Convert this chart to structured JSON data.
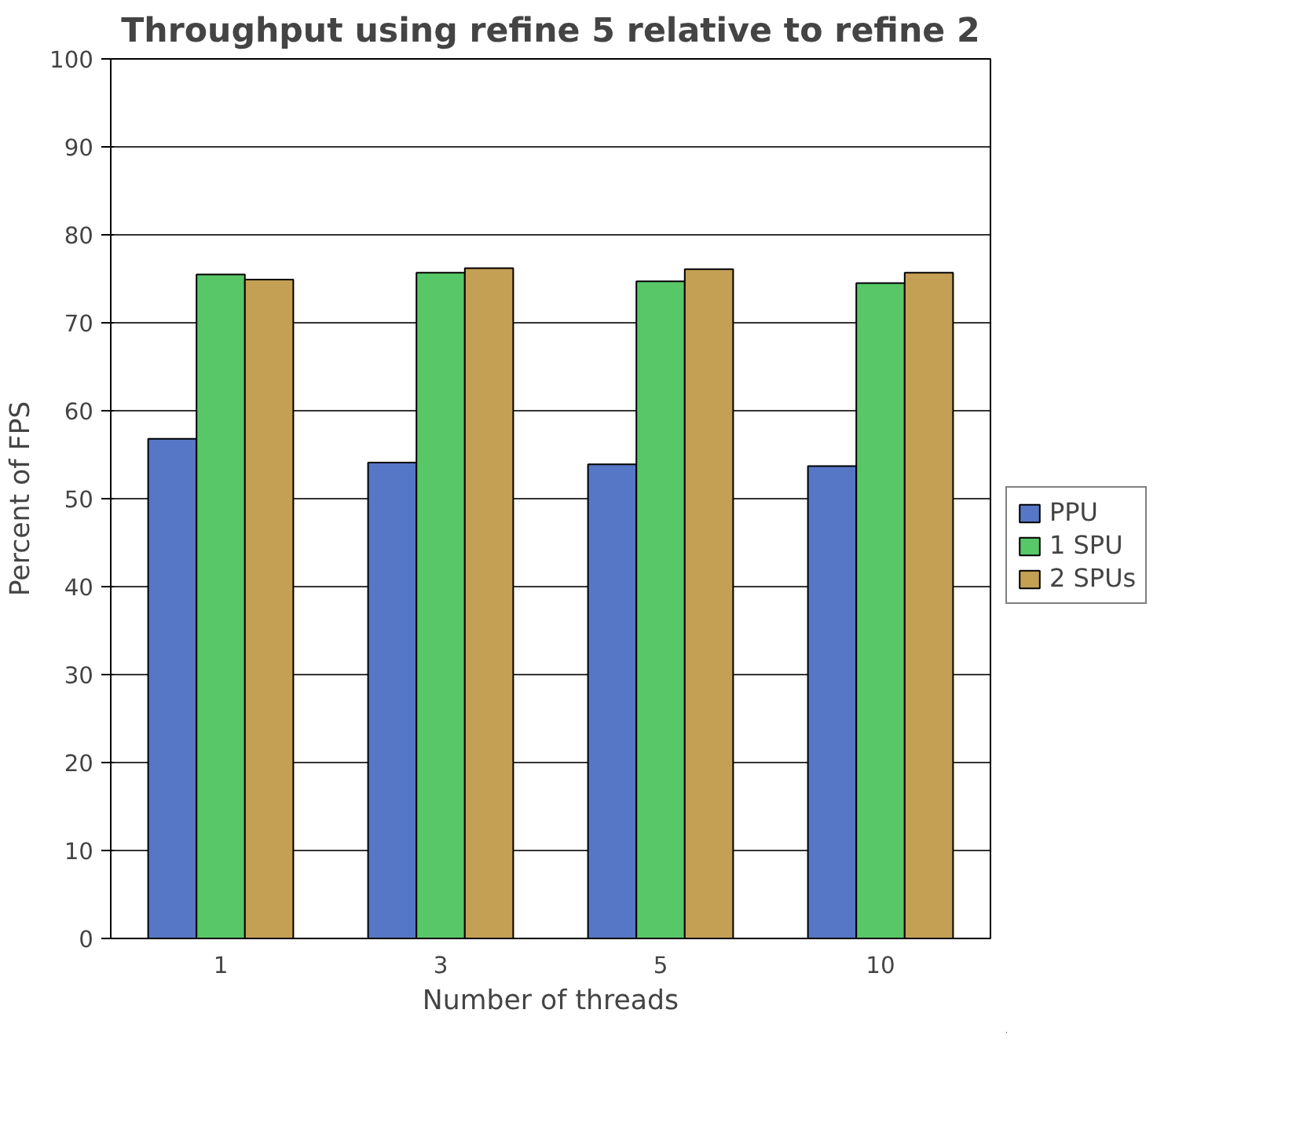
{
  "chart_data": {
    "type": "bar",
    "title": "Throughput using refine 5 relative to refine 2",
    "xlabel": "Number of threads",
    "ylabel": "Percent of FPS",
    "categories": [
      "1",
      "3",
      "5",
      "10"
    ],
    "series": [
      {
        "name": "PPU",
        "color": "#5577c5",
        "values": [
          56.8,
          54.1,
          53.9,
          53.7
        ]
      },
      {
        "name": "1 SPU",
        "color": "#58c768",
        "values": [
          75.5,
          75.7,
          74.7,
          74.5
        ]
      },
      {
        "name": "2 SPUs",
        "color": "#c4a055",
        "values": [
          74.9,
          76.2,
          76.1,
          75.7
        ]
      }
    ],
    "ylim": [
      0,
      100
    ],
    "yticks": [
      0,
      10,
      20,
      30,
      40,
      50,
      60,
      70,
      80,
      90,
      100
    ],
    "grid": "y",
    "legend": "right"
  }
}
